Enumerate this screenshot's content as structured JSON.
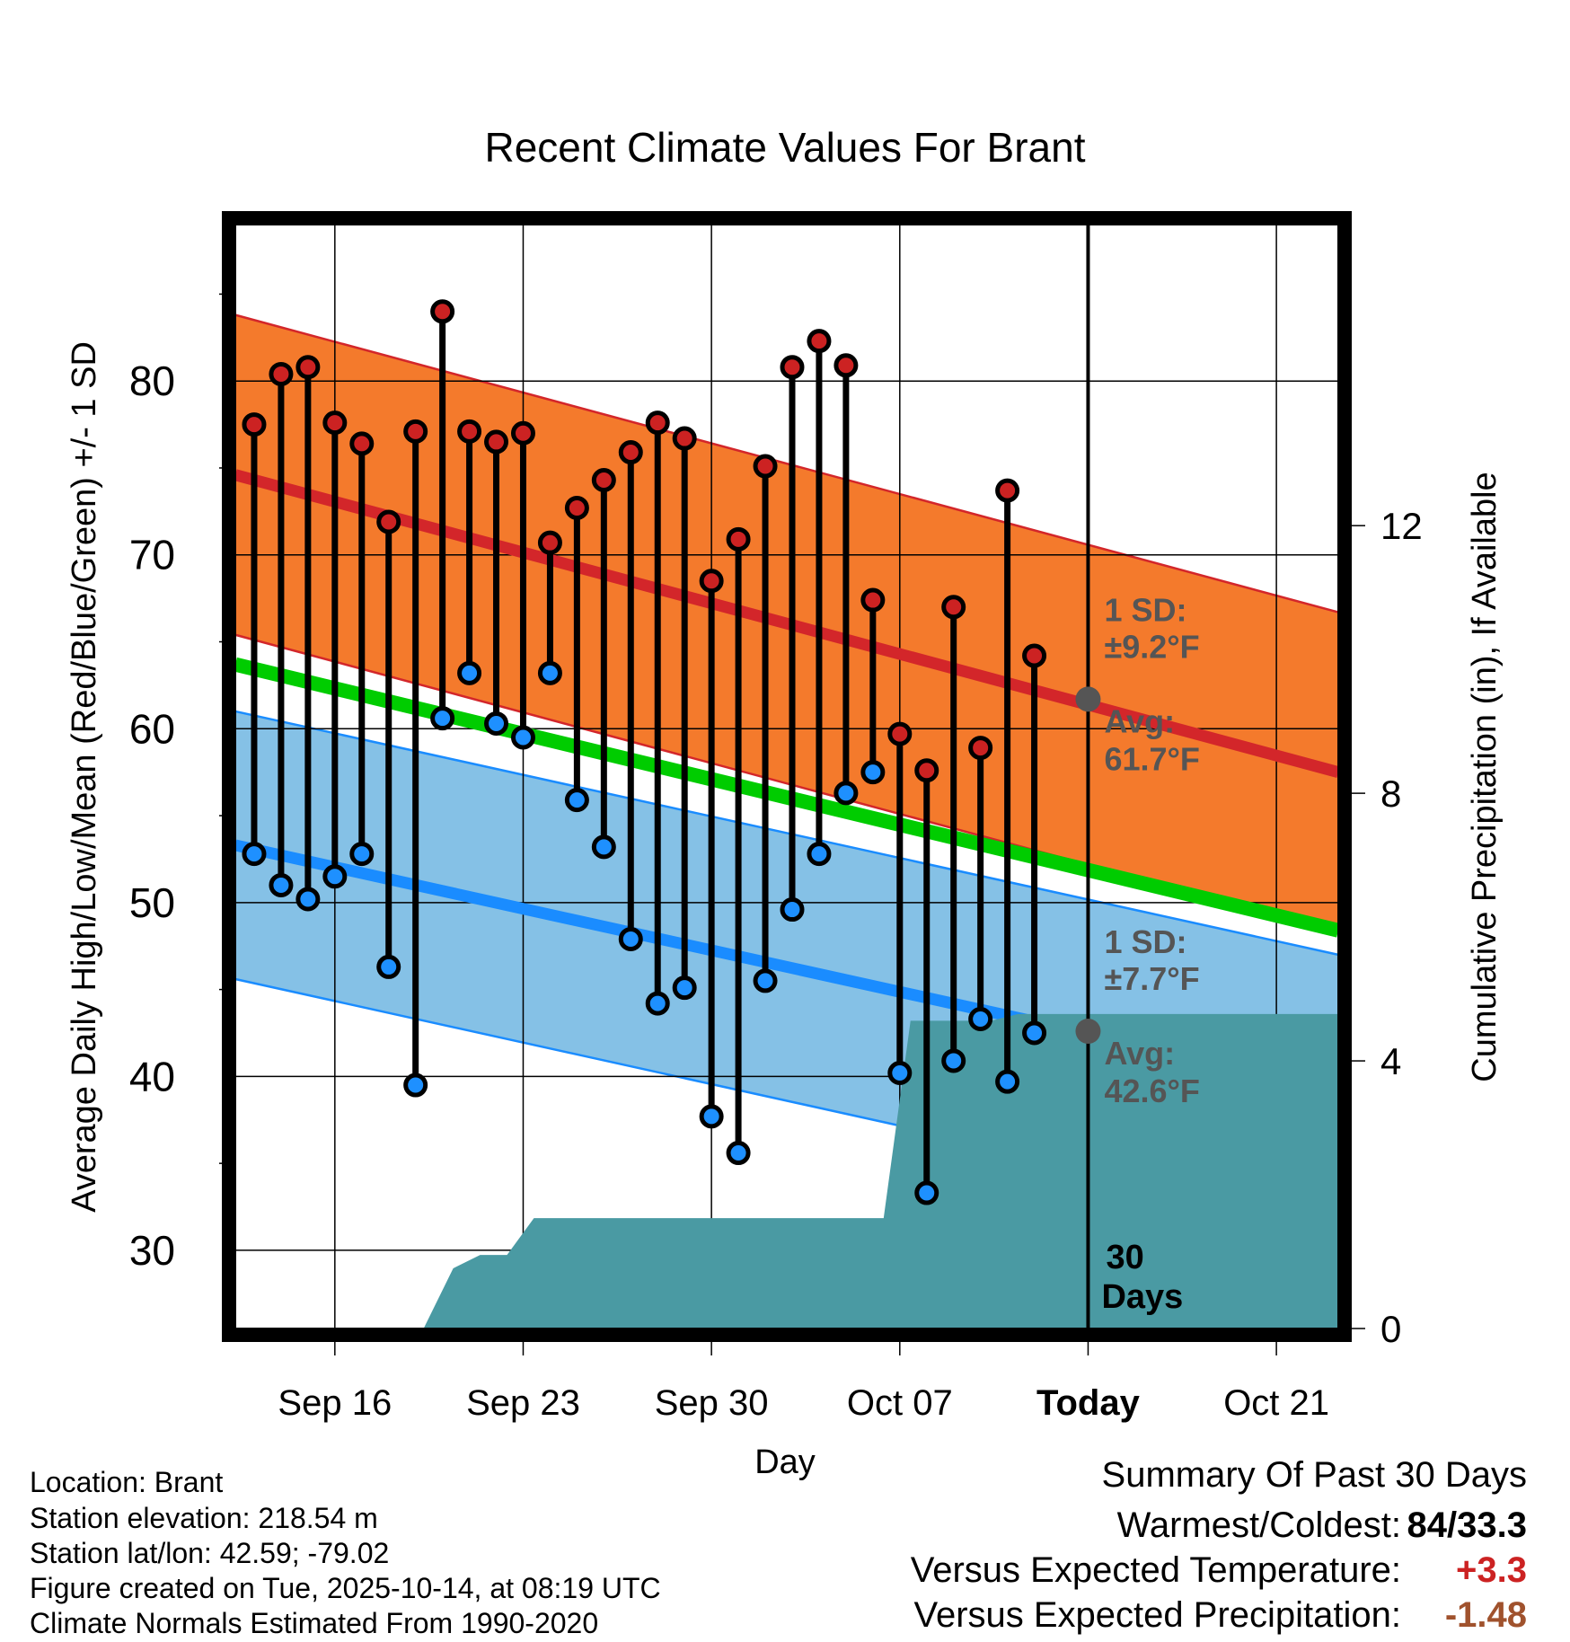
{
  "chart_data": {
    "type": "climate-range",
    "title": "Recent Climate Values For Brant",
    "xlabel": "Day",
    "ylabel": "Average Daily High/Low/Mean (Red/Blue/Green) +/- 1 SD",
    "y2label": "Cumulative Precipitation (in), If Available",
    "ylim": [
      25.5,
      89
    ],
    "y2lim": [
      0,
      16.5
    ],
    "xlim": [
      -3.7,
      37.3
    ],
    "yticks": [
      30,
      40,
      50,
      60,
      70,
      80
    ],
    "y2ticks": [
      0,
      4,
      8,
      12
    ],
    "xticks": [
      {
        "day": 0,
        "label": "Sep 16"
      },
      {
        "day": 7,
        "label": "Sep 23"
      },
      {
        "day": 14,
        "label": "Sep 30"
      },
      {
        "day": 21,
        "label": "Oct 07"
      },
      {
        "day": 28,
        "label": "Today"
      },
      {
        "day": 35,
        "label": "Oct 21"
      }
    ],
    "today_day": 28,
    "highs": [
      77.5,
      80.4,
      80.8,
      77.6,
      76.4,
      71.9,
      77.1,
      84.0,
      77.1,
      76.5,
      77.0,
      70.7,
      72.7,
      74.3,
      75.9,
      77.6,
      76.7,
      68.5,
      70.9,
      75.1,
      80.8,
      82.3,
      80.9,
      67.4,
      59.7,
      57.6,
      67.0,
      58.9,
      73.7,
      64.2
    ],
    "lows": [
      52.8,
      51.0,
      50.2,
      51.5,
      52.8,
      46.3,
      39.5,
      60.6,
      63.2,
      60.3,
      59.5,
      63.2,
      55.9,
      53.2,
      47.9,
      44.2,
      45.1,
      37.7,
      35.6,
      45.5,
      49.6,
      52.8,
      56.3,
      57.5,
      40.2,
      33.3,
      40.9,
      43.3,
      39.7,
      42.5
    ],
    "normal_high": {
      "start": 74.6,
      "end": 57.5,
      "today": 61.7,
      "sd": 9.2
    },
    "normal_low": {
      "start": 53.3,
      "end": 39.3,
      "today": 42.6,
      "sd": 7.7
    },
    "normal_mean": {
      "start": 63.7,
      "end": 48.4
    },
    "precip_cumulative": {
      "days": [
        -3.7,
        3.3,
        4.4,
        5.4,
        6.4,
        7.4,
        8.4,
        12.4,
        16.4,
        19.4,
        20.4,
        21.4,
        22.4,
        23.4,
        24.4,
        25.4,
        26.4,
        27.4,
        28.4,
        37.3
      ],
      "values": [
        0,
        0,
        0.9,
        1.1,
        1.1,
        1.65,
        1.65,
        1.65,
        1.65,
        1.65,
        1.65,
        4.6,
        4.6,
        4.6,
        4.6,
        4.7,
        4.7,
        4.7,
        4.7,
        4.7
      ]
    },
    "annotations": {
      "high_sd_label": "1 SD:",
      "high_sd_value": "±9.2°F",
      "high_avg_label": "Avg:",
      "high_avg_value": "61.7°F",
      "low_sd_label": "1 SD:",
      "low_sd_value": "±7.7°F",
      "low_avg_label": "Avg:",
      "low_avg_value": "42.6°F",
      "days_label_1": "30",
      "days_label_2": "Days"
    },
    "colors": {
      "high_band": "#f47a2c",
      "high_line": "#d3262a",
      "low_band": "#85c1e6",
      "low_line": "#1a8cff",
      "mean_line": "#00cc00",
      "precip": "#4a9aa3",
      "high_point": "#cc2222",
      "low_point": "#1e90ff",
      "annotation": "#555555"
    }
  },
  "footer": {
    "location": "Location: Brant",
    "elevation": "Station elevation: 218.54 m",
    "latlon": "Station lat/lon: 42.59; -79.02",
    "created": "Figure created on Tue, 2025-10-14, at 08:19 UTC",
    "normals": "Climate Normals Estimated From 1990-2020"
  },
  "summary": {
    "title": "Summary Of Past 30 Days",
    "warm_cold_label": "Warmest/Coldest:",
    "warm_cold_value": "84/33.3",
    "temp_label": "Versus Expected Temperature:",
    "temp_value": "+3.3",
    "temp_color": "#cc2222",
    "precip_label": "Versus Expected Precipitation:",
    "precip_value": "-1.48",
    "precip_color": "#a0522d"
  }
}
